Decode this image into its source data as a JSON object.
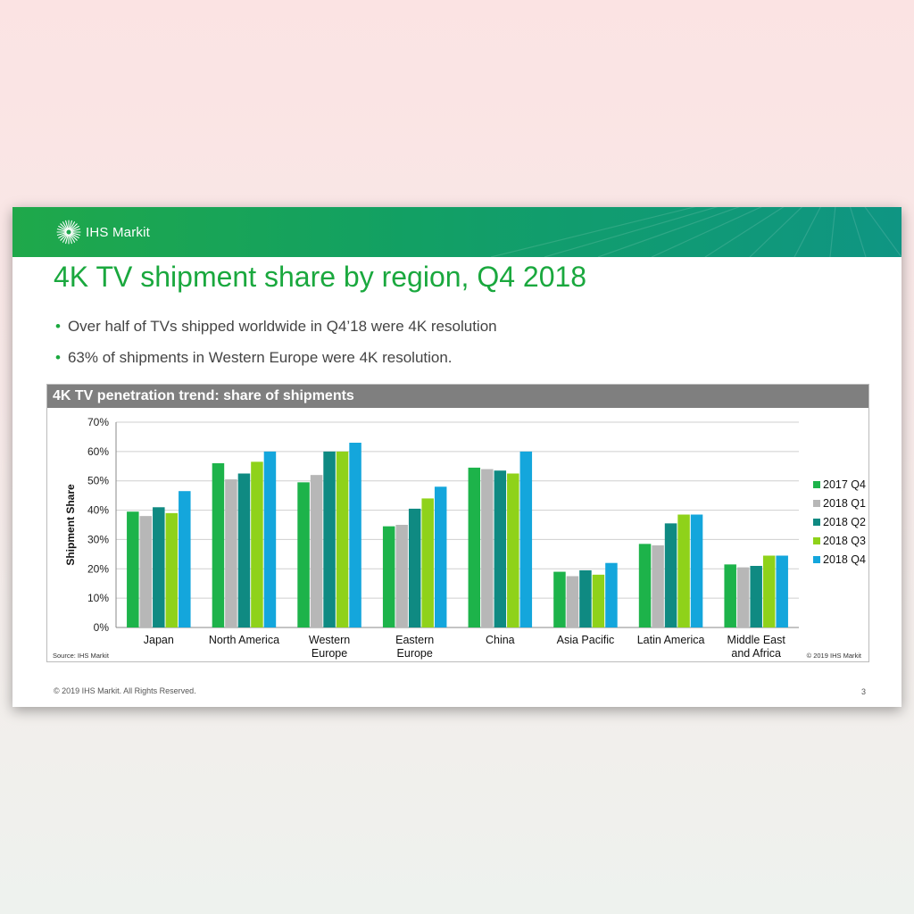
{
  "header": {
    "brand": "IHS Markit"
  },
  "title": "4K TV shipment share by region, Q4 2018",
  "bullets": [
    "Over half of TVs shipped worldwide in Q4’18 were 4K resolution",
    "63% of shipments in Western Europe were 4K resolution."
  ],
  "panel": {
    "heading": "4K TV penetration trend: share of shipments",
    "source": "Source: IHS Markit",
    "copyright": "© 2019 IHS Markit"
  },
  "footer": {
    "copyright": "© 2019 IHS Markit. All Rights Reserved.",
    "page": "3"
  },
  "colors": {
    "accent": "#1aa83e",
    "series": [
      "#1db34a",
      "#b7b7b7",
      "#0f8a82",
      "#8fd21a",
      "#14a6dc"
    ]
  },
  "chart_data": {
    "type": "bar",
    "ylabel": "Shipment Share",
    "ylim": [
      0,
      70
    ],
    "yticks": [
      "0%",
      "10%",
      "20%",
      "30%",
      "40%",
      "50%",
      "60%",
      "70%"
    ],
    "grid": true,
    "legend_position": "right",
    "categories": [
      [
        "Japan"
      ],
      [
        "North America"
      ],
      [
        "Western",
        "Europe"
      ],
      [
        "Eastern",
        "Europe"
      ],
      [
        "China"
      ],
      [
        "Asia Pacific"
      ],
      [
        "Latin America"
      ],
      [
        "Middle East",
        "and Africa"
      ]
    ],
    "series": [
      {
        "name": "2017 Q4",
        "values": [
          39.5,
          56,
          49.5,
          34.5,
          54.5,
          19,
          28.5,
          21.5
        ]
      },
      {
        "name": "2018 Q1",
        "values": [
          38,
          50.5,
          52,
          35,
          54,
          17.5,
          28,
          20.5
        ]
      },
      {
        "name": "2018 Q2",
        "values": [
          41,
          52.5,
          60,
          40.5,
          53.5,
          19.5,
          35.5,
          21
        ]
      },
      {
        "name": "2018 Q3",
        "values": [
          39,
          56.5,
          60,
          44,
          52.5,
          18,
          38.5,
          24.5
        ]
      },
      {
        "name": "2018 Q4",
        "values": [
          46.5,
          60,
          63,
          48,
          60,
          22,
          38.5,
          24.5
        ]
      }
    ]
  }
}
